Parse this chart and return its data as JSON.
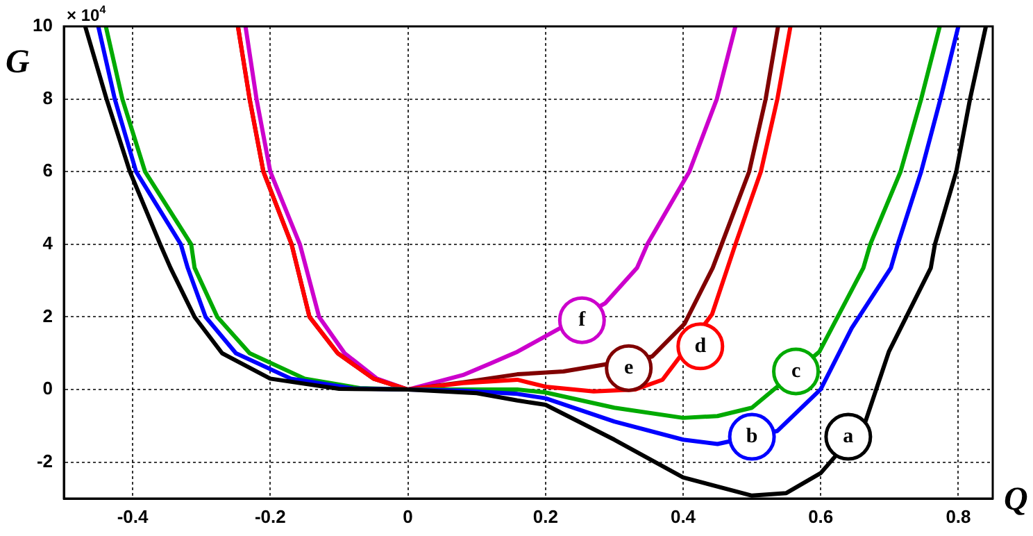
{
  "chart_data": {
    "type": "line",
    "xlabel": "Q",
    "ylabel": "G",
    "xlim": [
      -0.5,
      0.85
    ],
    "ylim": [
      -3,
      10
    ],
    "xticks": [
      -0.4,
      -0.2,
      0,
      0.2,
      0.4,
      0.6,
      0.8
    ],
    "yticks": [
      -2,
      0,
      2,
      4,
      6,
      8,
      10
    ],
    "grid": true,
    "legend": false,
    "marker": "none",
    "line_style": "solid",
    "series": [
      {
        "color": "#000000",
        "x": [
          -0.469,
          -0.438,
          -0.404,
          -0.36,
          -0.345,
          -0.31,
          -0.27,
          -0.2,
          -0.1,
          0,
          0.1,
          0.159,
          0.2,
          0.3,
          0.4,
          0.5,
          0.55,
          0.6,
          0.665,
          0.699,
          0.76,
          0.766,
          0.797,
          0.817,
          0.84
        ],
        "values": [
          10,
          8,
          6,
          4,
          3.35,
          2,
          1,
          0.3,
          0.02,
          0,
          -0.1,
          -0.3,
          -0.42,
          -1.38,
          -2.42,
          -2.92,
          -2.85,
          -2.3,
          -0.88,
          1.04,
          3.35,
          4,
          6,
          8,
          10
        ]
      },
      {
        "color": "#0000ff",
        "x": [
          -0.45,
          -0.426,
          -0.395,
          -0.33,
          -0.32,
          -0.294,
          -0.25,
          -0.17,
          -0.08,
          0,
          0.08,
          0.159,
          0.2,
          0.3,
          0.4,
          0.45,
          0.537,
          0.6,
          0.645,
          0.702,
          0.712,
          0.746,
          0.774,
          0.8
        ],
        "values": [
          10,
          8,
          6,
          4,
          3.35,
          2,
          1,
          0.3,
          0.03,
          0,
          -0.03,
          -0.12,
          -0.24,
          -0.88,
          -1.38,
          -1.5,
          -1.14,
          0.01,
          1.69,
          3.35,
          4,
          6,
          8,
          10
        ]
      },
      {
        "color": "#00aa00",
        "x": [
          -0.439,
          -0.415,
          -0.382,
          -0.315,
          -0.31,
          -0.277,
          -0.23,
          -0.15,
          -0.07,
          0,
          0.08,
          0.159,
          0.2,
          0.3,
          0.4,
          0.45,
          0.5,
          0.598,
          0.662,
          0.672,
          0.716,
          0.746,
          0.773
        ],
        "values": [
          10,
          8,
          6,
          4,
          3.35,
          2,
          1,
          0.3,
          0.04,
          0,
          0,
          0,
          -0.08,
          -0.5,
          -0.78,
          -0.73,
          -0.5,
          1.04,
          3.35,
          4,
          6,
          8,
          10
        ]
      },
      {
        "color": "#ff0000",
        "x": [
          -0.247,
          -0.23,
          -0.21,
          -0.169,
          -0.143,
          -0.102,
          -0.05,
          0,
          0.08,
          0.159,
          0.2,
          0.27,
          0.33,
          0.37,
          0.442,
          0.476,
          0.513,
          0.537,
          0.556
        ],
        "values": [
          10,
          8,
          6,
          4,
          2,
          1,
          0.3,
          0,
          0.18,
          0.27,
          0.08,
          -0.05,
          0,
          0.27,
          2.07,
          4,
          6,
          8,
          10
        ]
      },
      {
        "color": "#800000",
        "x": [
          -0.247,
          -0.23,
          -0.21,
          -0.169,
          -0.143,
          -0.102,
          -0.05,
          0,
          0.08,
          0.159,
          0.226,
          0.355,
          0.402,
          0.443,
          0.456,
          0.496,
          0.52,
          0.538
        ],
        "values": [
          10,
          8,
          6,
          4,
          2,
          1,
          0.3,
          0,
          0.2,
          0.42,
          0.5,
          0.91,
          1.81,
          3.35,
          4,
          6,
          8,
          10
        ]
      },
      {
        "color": "#cc00cc",
        "x": [
          -0.236,
          -0.22,
          -0.2,
          -0.157,
          -0.129,
          -0.092,
          -0.045,
          0,
          0.08,
          0.12,
          0.159,
          0.287,
          0.333,
          0.348,
          0.409,
          0.449,
          0.476
        ],
        "values": [
          10,
          8,
          6,
          4,
          2,
          1,
          0.3,
          0,
          0.4,
          0.72,
          1.04,
          2.38,
          3.35,
          4,
          6,
          8,
          10
        ]
      }
    ],
    "annotations": [
      "× 10$^{4}$",
      {
        "text": "a",
        "x": 0.64,
        "y": -1.3
      },
      {
        "text": "b",
        "x": 0.5,
        "y": -1.3
      },
      {
        "text": "c",
        "x": 0.564,
        "y": 0.5
      },
      {
        "text": "d",
        "x": 0.425,
        "y": 1.19
      },
      {
        "text": "e",
        "x": 0.321,
        "y": 0.59
      },
      {
        "text": "f",
        "x": 0.253,
        "y": 1.91
      }
    ]
  }
}
